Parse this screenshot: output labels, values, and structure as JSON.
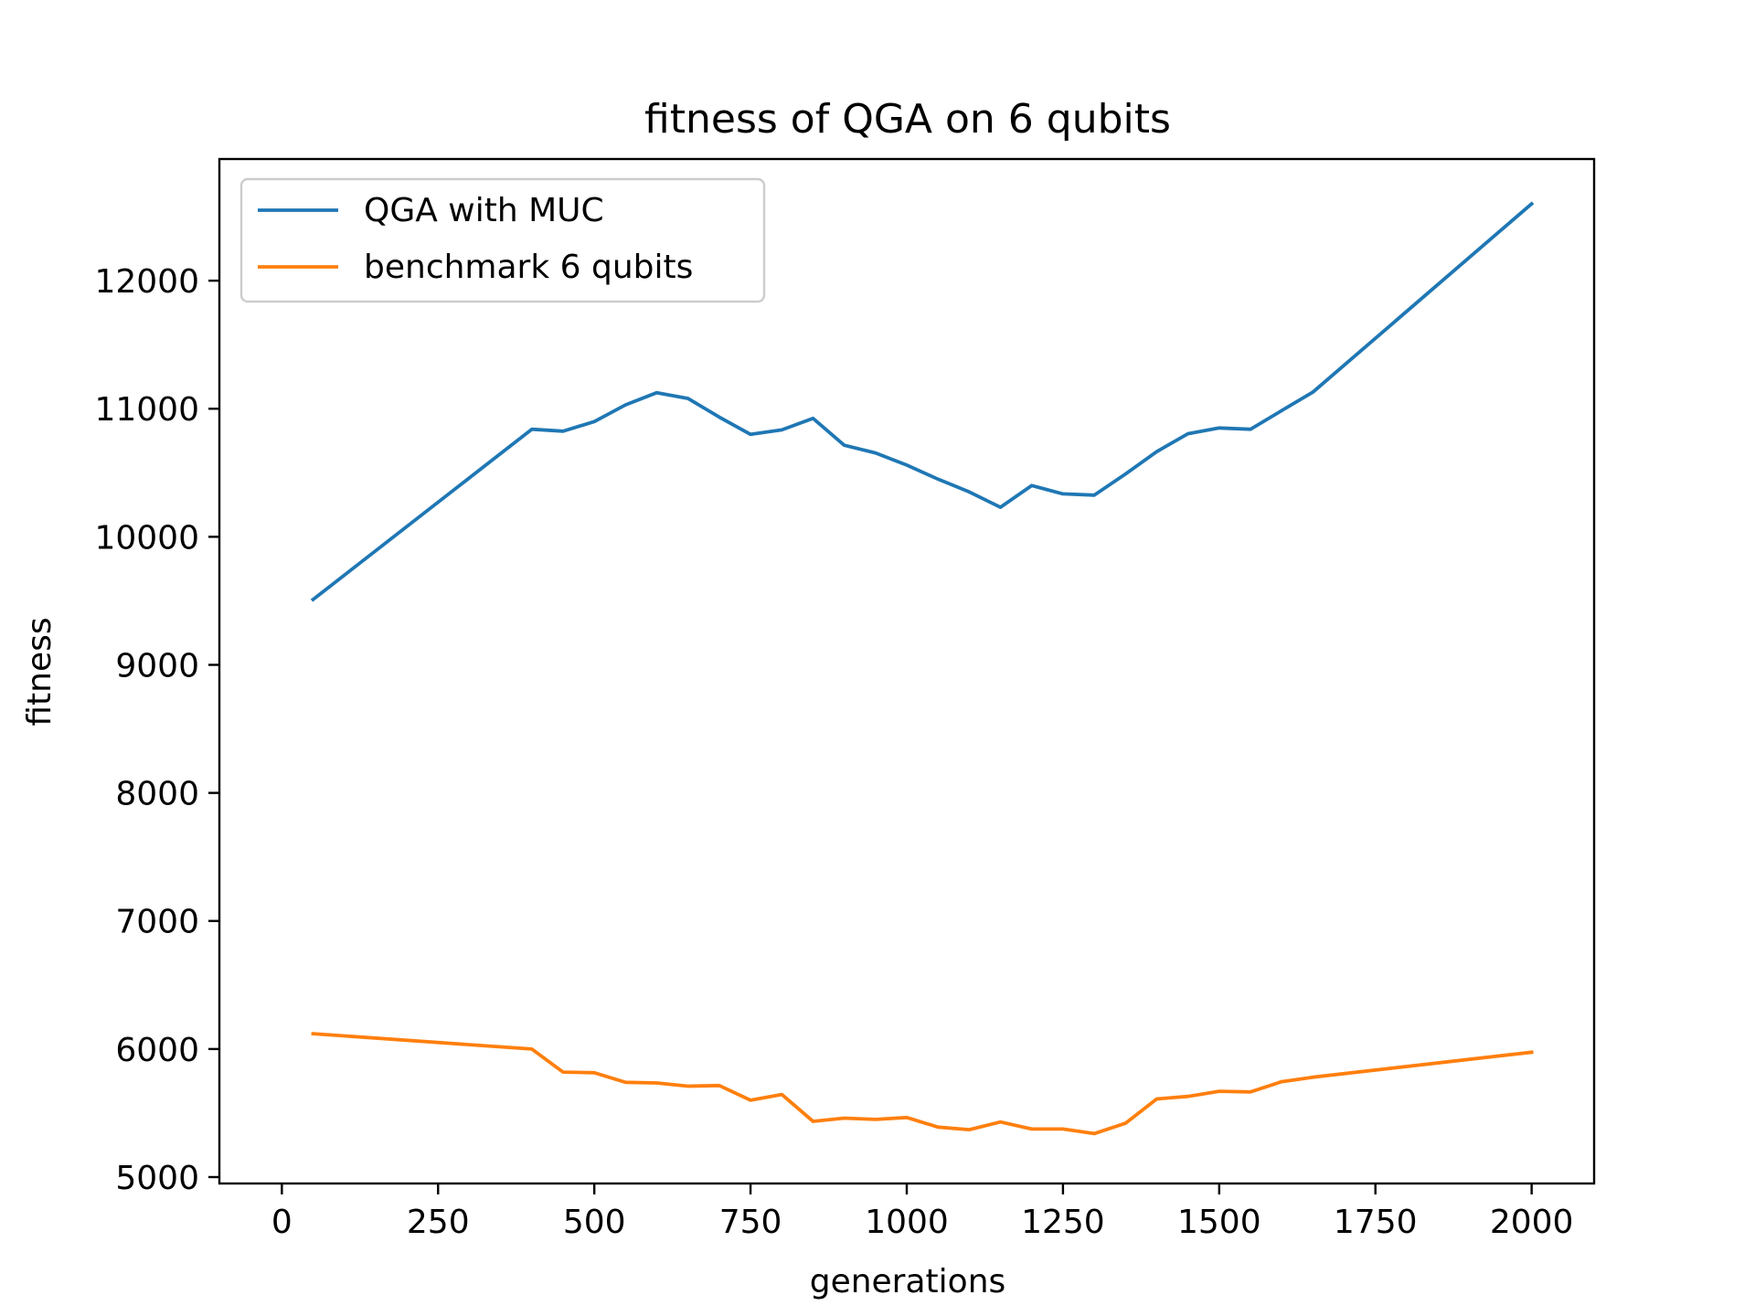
{
  "chart_data": {
    "type": "line",
    "title": "fitness of QGA on 6 qubits",
    "xlabel": "generations",
    "ylabel": "fitness",
    "xlim": [
      -100,
      2100
    ],
    "ylim": [
      4950,
      12950
    ],
    "xticks": [
      0,
      250,
      500,
      750,
      1000,
      1250,
      1500,
      1750,
      2000
    ],
    "yticks": [
      5000,
      6000,
      7000,
      8000,
      9000,
      10000,
      11000,
      12000
    ],
    "grid": false,
    "legend_position": "top-left",
    "series": [
      {
        "name": "QGA with MUC",
        "color": "#1f77b4",
        "x": [
          50,
          400,
          450,
          500,
          550,
          600,
          650,
          700,
          750,
          800,
          850,
          900,
          950,
          1000,
          1050,
          1100,
          1150,
          1200,
          1250,
          1300,
          1350,
          1400,
          1450,
          1500,
          1550,
          1600,
          1650,
          2000
        ],
        "y": [
          9510,
          10840,
          10825,
          10900,
          11030,
          11125,
          11080,
          10935,
          10800,
          10835,
          10925,
          10715,
          10655,
          10560,
          10450,
          10350,
          10230,
          10400,
          10335,
          10325,
          10490,
          10665,
          10805,
          10850,
          10840,
          10985,
          11130,
          12600
        ]
      },
      {
        "name": "benchmark 6 qubits",
        "color": "#ff7f0e",
        "x": [
          50,
          400,
          450,
          500,
          550,
          600,
          650,
          700,
          750,
          800,
          850,
          900,
          950,
          1000,
          1050,
          1100,
          1150,
          1200,
          1250,
          1300,
          1350,
          1400,
          1450,
          1500,
          1550,
          1600,
          1650,
          2000
        ],
        "y": [
          6120,
          6000,
          5820,
          5815,
          5740,
          5735,
          5710,
          5715,
          5600,
          5645,
          5435,
          5460,
          5450,
          5465,
          5390,
          5370,
          5430,
          5375,
          5375,
          5340,
          5420,
          5610,
          5630,
          5670,
          5665,
          5745,
          5780,
          5975
        ]
      }
    ]
  }
}
